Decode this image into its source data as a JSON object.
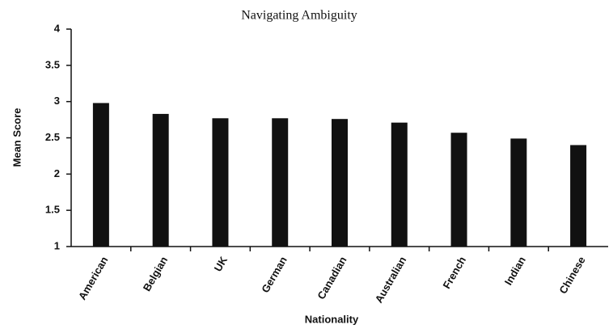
{
  "chart_data": {
    "type": "bar",
    "title": "Navigating Ambiguity",
    "x_label": "Nationality",
    "y_label": "Mean Score",
    "categories": [
      "American",
      "Belgian",
      "UK",
      "German",
      "Canadian",
      "Australian",
      "French",
      "Indian",
      "Chinese"
    ],
    "values": [
      2.98,
      2.83,
      2.77,
      2.77,
      2.76,
      2.71,
      2.57,
      2.49,
      2.4
    ],
    "color": "#111111",
    "ylim": [
      1,
      4
    ],
    "yticks": [
      1,
      1.5,
      2,
      2.5,
      3,
      3.5,
      4
    ],
    "grid": false
  }
}
